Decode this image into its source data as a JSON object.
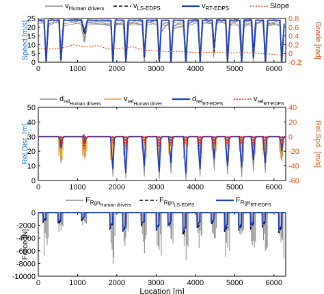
{
  "chart_data": [
    {
      "type": "line",
      "xlabel": "",
      "ylabel": "Speed [m/s]",
      "y2label": "Grade [rad]",
      "xlim": [
        0,
        6300
      ],
      "ylim": [
        0,
        25
      ],
      "y2lim": [
        -0.2,
        0.8
      ],
      "xticks": [
        "0",
        "1000",
        "2000",
        "3000",
        "4000",
        "5000",
        "6000"
      ],
      "yticks": [
        "0",
        "5",
        "10",
        "15",
        "20",
        "25"
      ],
      "y2ticks": [
        "-0.2",
        "0",
        "0.2",
        "0.4",
        "0.6",
        "0.8"
      ],
      "legend": {
        "placement": "top",
        "entries": [
          {
            "main": "v",
            "sub": "Human drivers",
            "color": "#8c8c8c"
          },
          {
            "main": "v",
            "sub": "LS-EDPS",
            "color": "#000000"
          },
          {
            "main": "v",
            "sub": "RT-EDPS",
            "color": "#1f3fbf"
          },
          {
            "main": "Slope",
            "sub": "",
            "color": "#d9541a"
          }
        ]
      },
      "stops": [
        200,
        580,
        1180,
        1900,
        2230,
        2700,
        3080,
        3380,
        3760,
        4120,
        4480,
        4820,
        5180,
        5480,
        5780,
        6200
      ],
      "cruise_speed": 24,
      "series": [
        {
          "key": "human",
          "values": [
            [
              0,
              24
            ],
            [
              150,
              24
            ],
            [
              200,
              0
            ],
            [
              260,
              23
            ],
            [
              530,
              24
            ],
            [
              580,
              0
            ],
            [
              650,
              23
            ],
            [
              1100,
              24
            ],
            [
              1180,
              14
            ],
            [
              1250,
              23
            ],
            [
              1850,
              23
            ],
            [
              1900,
              0
            ],
            [
              1960,
              22
            ],
            [
              2180,
              23
            ],
            [
              2230,
              0
            ],
            [
              2290,
              23
            ],
            [
              2650,
              24
            ],
            [
              2700,
              2
            ],
            [
              2760,
              23
            ],
            [
              3030,
              23
            ],
            [
              3080,
              0
            ],
            [
              3140,
              20
            ],
            [
              3330,
              21
            ],
            [
              3380,
              0
            ],
            [
              3440,
              21
            ],
            [
              3700,
              22
            ],
            [
              3760,
              0
            ],
            [
              3820,
              23
            ],
            [
              4070,
              23
            ],
            [
              4120,
              0
            ],
            [
              4180,
              23
            ],
            [
              4430,
              24
            ],
            [
              4480,
              5
            ],
            [
              4540,
              23
            ],
            [
              4770,
              24
            ],
            [
              4820,
              0
            ],
            [
              4880,
              22
            ],
            [
              5130,
              23
            ],
            [
              5180,
              0
            ],
            [
              5240,
              22
            ],
            [
              5430,
              23
            ],
            [
              5480,
              2
            ],
            [
              5540,
              22
            ],
            [
              5730,
              23
            ],
            [
              5780,
              0
            ],
            [
              5840,
              22
            ],
            [
              6150,
              23
            ],
            [
              6200,
              0
            ],
            [
              6260,
              20
            ]
          ]
        },
        {
          "key": "ls",
          "values": [
            [
              0,
              24
            ],
            [
              150,
              24
            ],
            [
              200,
              0
            ],
            [
              260,
              24
            ],
            [
              530,
              24
            ],
            [
              580,
              1
            ],
            [
              650,
              24
            ],
            [
              1100,
              24
            ],
            [
              1180,
              16
            ],
            [
              1250,
              24
            ],
            [
              1850,
              24
            ],
            [
              1900,
              0
            ],
            [
              1960,
              24
            ],
            [
              2180,
              24
            ],
            [
              2230,
              0
            ],
            [
              2290,
              24
            ],
            [
              2650,
              24
            ],
            [
              2700,
              3
            ],
            [
              2760,
              24
            ],
            [
              3030,
              24
            ],
            [
              3080,
              0
            ],
            [
              3140,
              24
            ],
            [
              3330,
              24
            ],
            [
              3380,
              0
            ],
            [
              3440,
              24
            ],
            [
              3700,
              24
            ],
            [
              3760,
              0
            ],
            [
              3820,
              24
            ],
            [
              4070,
              24
            ],
            [
              4120,
              0
            ],
            [
              4180,
              24
            ],
            [
              4430,
              24
            ],
            [
              4480,
              6
            ],
            [
              4540,
              24
            ],
            [
              4770,
              24
            ],
            [
              4820,
              0
            ],
            [
              4880,
              24
            ],
            [
              5130,
              24
            ],
            [
              5180,
              0
            ],
            [
              5240,
              24
            ],
            [
              5430,
              24
            ],
            [
              5480,
              3
            ],
            [
              5540,
              24
            ],
            [
              5730,
              24
            ],
            [
              5780,
              0
            ],
            [
              5840,
              24
            ],
            [
              6150,
              24
            ],
            [
              6200,
              0
            ],
            [
              6260,
              21
            ]
          ]
        },
        {
          "key": "rt",
          "values": [
            [
              0,
              24
            ],
            [
              150,
              24
            ],
            [
              200,
              0
            ],
            [
              260,
              24
            ],
            [
              530,
              24
            ],
            [
              580,
              2
            ],
            [
              650,
              24
            ],
            [
              1100,
              24
            ],
            [
              1180,
              18
            ],
            [
              1250,
              24
            ],
            [
              1850,
              24
            ],
            [
              1900,
              0
            ],
            [
              1960,
              24
            ],
            [
              2180,
              24
            ],
            [
              2230,
              0
            ],
            [
              2290,
              24
            ],
            [
              2650,
              24
            ],
            [
              2700,
              4
            ],
            [
              2760,
              24
            ],
            [
              3030,
              24
            ],
            [
              3080,
              0
            ],
            [
              3140,
              24
            ],
            [
              3330,
              24
            ],
            [
              3380,
              0
            ],
            [
              3440,
              24
            ],
            [
              3700,
              24
            ],
            [
              3760,
              0
            ],
            [
              3820,
              24
            ],
            [
              4070,
              24
            ],
            [
              4120,
              0
            ],
            [
              4180,
              24
            ],
            [
              4430,
              24
            ],
            [
              4480,
              8
            ],
            [
              4540,
              24
            ],
            [
              4770,
              24
            ],
            [
              4820,
              0
            ],
            [
              4880,
              24
            ],
            [
              5130,
              24
            ],
            [
              5180,
              0
            ],
            [
              5240,
              24
            ],
            [
              5430,
              24
            ],
            [
              5480,
              4
            ],
            [
              5540,
              24
            ],
            [
              5730,
              24
            ],
            [
              5780,
              0
            ],
            [
              5840,
              24
            ],
            [
              6150,
              24
            ],
            [
              6200,
              0
            ],
            [
              6260,
              22
            ]
          ]
        },
        {
          "key": "slope",
          "axis": "y2",
          "values": [
            [
              0,
              0.12
            ],
            [
              300,
              0.1
            ],
            [
              600,
              0.12
            ],
            [
              900,
              0.2
            ],
            [
              1200,
              0.15
            ],
            [
              1500,
              0.18
            ],
            [
              1800,
              0.1
            ],
            [
              2100,
              0.12
            ],
            [
              2400,
              0.15
            ],
            [
              2700,
              0.08
            ],
            [
              3000,
              0.06
            ],
            [
              3300,
              0.04
            ],
            [
              3600,
              0.05
            ],
            [
              4000,
              0.02
            ],
            [
              4400,
              0.03
            ],
            [
              4800,
              0.01
            ],
            [
              5200,
              0.02
            ],
            [
              5600,
              0.0
            ],
            [
              6000,
              -0.02
            ],
            [
              6300,
              -0.05
            ]
          ]
        }
      ]
    },
    {
      "type": "line",
      "xlabel": "",
      "ylabel": "Rel.Dist. [m]",
      "y2label": "Rel.Spd. [m/s]",
      "xlim": [
        0,
        6300
      ],
      "ylim": [
        0,
        50
      ],
      "y2lim": [
        -60,
        40
      ],
      "xticks": [
        "0",
        "1000",
        "2000",
        "3000",
        "4000",
        "5000",
        "6000"
      ],
      "yticks": [
        "0",
        "10",
        "20",
        "30",
        "40",
        "50"
      ],
      "y2ticks": [
        "-60",
        "-40",
        "-20",
        "0",
        "20",
        "40"
      ],
      "legend": {
        "placement": "top",
        "entries": [
          {
            "main": "d",
            "sub": "rel",
            "sub2": "Human drivers",
            "color": "#8c8c8c"
          },
          {
            "main": "v",
            "sub": "rel",
            "sub2": "Human driver",
            "color": "#e8a020"
          },
          {
            "main": "d",
            "sub": "rel",
            "sub2": "RT-EDPS",
            "color": "#1f3fbf"
          },
          {
            "main": "v",
            "sub": "rel",
            "sub2": "RT-EDPS",
            "color": "#e02020"
          }
        ]
      },
      "base_distance": 30,
      "dips": [
        [
          580,
          22
        ],
        [
          1180,
          25
        ],
        [
          1900,
          8
        ],
        [
          2230,
          5
        ],
        [
          2700,
          10
        ],
        [
          3080,
          6
        ],
        [
          3380,
          12
        ],
        [
          3760,
          5
        ],
        [
          4120,
          8
        ],
        [
          4480,
          15
        ],
        [
          4820,
          10
        ],
        [
          5180,
          9
        ],
        [
          5480,
          14
        ],
        [
          5780,
          12
        ],
        [
          6200,
          20
        ]
      ]
    },
    {
      "type": "line",
      "xlabel": "Location [m]",
      "ylabel": "Force [N]",
      "xlim": [
        0,
        6300
      ],
      "ylim": [
        -10000,
        0
      ],
      "xticks": [
        "0",
        "1000",
        "2000",
        "3000",
        "4000",
        "5000",
        "6000"
      ],
      "yticks": [
        "-10000",
        "-8000",
        "-6000",
        "-4000",
        "-2000",
        "0"
      ],
      "legend": {
        "placement": "top",
        "entries": [
          {
            "main": "F",
            "sub": "Rgn",
            "sub2": "Human drivers",
            "color": "#8c8c8c"
          },
          {
            "main": "F",
            "sub": "Rgn",
            "sub2": "LS-EDPS",
            "color": "#000000"
          },
          {
            "main": "F",
            "sub": "Rgn",
            "sub2": "RT-EDPS",
            "color": "#1f3fbf"
          }
        ]
      },
      "braking_events": [
        {
          "x": 200,
          "human": -7000,
          "ls": -1500,
          "rt": -1200
        },
        {
          "x": 580,
          "human": -3500,
          "ls": -1800,
          "rt": -1500
        },
        {
          "x": 1180,
          "human": -2500,
          "ls": -1200,
          "rt": -1000
        },
        {
          "x": 1900,
          "human": -8500,
          "ls": -2500,
          "rt": -2200
        },
        {
          "x": 2230,
          "human": -5500,
          "ls": -3000,
          "rt": -2800
        },
        {
          "x": 2700,
          "human": -6500,
          "ls": -2000,
          "rt": -1800
        },
        {
          "x": 3080,
          "human": -7500,
          "ls": -2800,
          "rt": -2500
        },
        {
          "x": 3380,
          "human": -5000,
          "ls": -2200,
          "rt": -2000
        },
        {
          "x": 3760,
          "human": -8000,
          "ls": -3500,
          "rt": -3000
        },
        {
          "x": 4120,
          "human": -6000,
          "ls": -2500,
          "rt": -2000
        },
        {
          "x": 4480,
          "human": -4500,
          "ls": -1800,
          "rt": -1500
        },
        {
          "x": 4820,
          "human": -7000,
          "ls": -3000,
          "rt": -2500
        },
        {
          "x": 5180,
          "human": -6500,
          "ls": -2800,
          "rt": -2400
        },
        {
          "x": 5480,
          "human": -5500,
          "ls": -2500,
          "rt": -2000
        },
        {
          "x": 5780,
          "human": -6000,
          "ls": -2200,
          "rt": -1800
        },
        {
          "x": 6200,
          "human": -8500,
          "ls": -3200,
          "rt": -2800
        }
      ]
    }
  ],
  "colors": {
    "human": "#8c8c8c",
    "ls": "#000000",
    "rt": "#1f3fbf",
    "slope": "#d9541a",
    "vrel_human": "#e8a020",
    "vrel_rt": "#e02020",
    "left_axis": "#1a6fbf",
    "right_axis": "#d9541a"
  }
}
